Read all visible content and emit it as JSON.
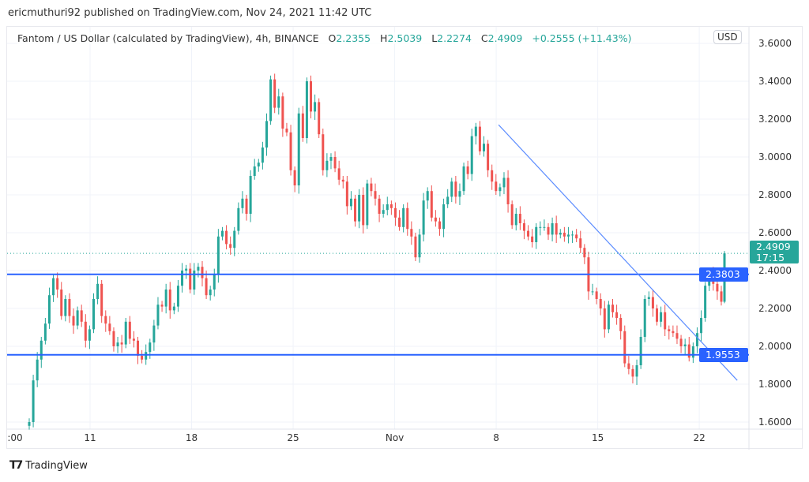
{
  "header": {
    "published": "ericmuthuri92 published on TradingView.com, Nov 24, 2021 11:42 UTC"
  },
  "legend": {
    "symbol": "Fantom / US Dollar (calculated by TradingView), 4h, BINANCE",
    "o_label": "O",
    "o": "2.2355",
    "h_label": "H",
    "h": "2.5039",
    "l_label": "L",
    "l": "2.2274",
    "c_label": "C",
    "c": "2.4909",
    "change": "+0.2555 (+11.43%)"
  },
  "currency_button": "USD",
  "footer": {
    "logo_text": "TradingView",
    "logo_mark": "TV"
  },
  "colors": {
    "up": "#26a69a",
    "down": "#ef5350",
    "lines": "#2962ff",
    "grid": "#f0f3fa"
  },
  "chart_data": {
    "type": "candlestick",
    "title": "Fantom / US Dollar (calculated by TradingView), 4h, BINANCE",
    "interval": "4h",
    "x_range": [
      "Oct 6",
      "Nov 24"
    ],
    "x_ticks": [
      ":00",
      "11",
      "18",
      "25",
      "Nov",
      "8",
      "15",
      "22"
    ],
    "y_ticks": [
      "3.6000",
      "3.4000",
      "3.2000",
      "3.0000",
      "2.8000",
      "2.6000",
      "2.4000",
      "2.2000",
      "2.0000",
      "1.8000",
      "1.6000"
    ],
    "ylim": [
      1.58,
      3.6
    ],
    "grid": true,
    "closes": [
      1.6,
      1.82,
      1.93,
      2.03,
      2.12,
      2.27,
      2.36,
      2.3,
      2.16,
      2.25,
      2.16,
      2.11,
      2.19,
      2.13,
      2.03,
      2.09,
      2.25,
      2.33,
      2.16,
      2.12,
      2.08,
      2.0,
      2.02,
      2.01,
      2.13,
      2.04,
      2.03,
      1.95,
      1.93,
      1.97,
      2.02,
      2.11,
      2.22,
      2.21,
      2.3,
      2.19,
      2.21,
      2.32,
      2.4,
      2.41,
      2.3,
      2.4,
      2.42,
      2.36,
      2.27,
      2.3,
      2.38,
      2.58,
      2.61,
      2.54,
      2.52,
      2.61,
      2.73,
      2.78,
      2.7,
      2.9,
      2.95,
      2.97,
      3.05,
      3.19,
      3.41,
      3.26,
      3.32,
      3.15,
      3.13,
      2.93,
      2.85,
      3.23,
      3.1,
      3.4,
      3.24,
      3.29,
      3.12,
      2.93,
      2.98,
      3.0,
      2.94,
      2.88,
      2.87,
      2.74,
      2.78,
      2.66,
      2.8,
      2.64,
      2.86,
      2.82,
      2.78,
      2.7,
      2.72,
      2.75,
      2.73,
      2.68,
      2.63,
      2.73,
      2.62,
      2.58,
      2.47,
      2.59,
      2.77,
      2.82,
      2.68,
      2.66,
      2.62,
      2.75,
      2.79,
      2.87,
      2.79,
      2.82,
      2.95,
      2.91,
      3.11,
      3.16,
      3.03,
      3.07,
      2.93,
      2.87,
      2.82,
      2.84,
      2.89,
      2.75,
      2.64,
      2.7,
      2.65,
      2.61,
      2.58,
      2.55,
      2.63,
      2.63,
      2.63,
      2.59,
      2.65,
      2.59,
      2.6,
      2.58,
      2.59,
      2.59,
      2.57,
      2.52,
      2.47,
      2.29,
      2.29,
      2.25,
      2.2,
      2.09,
      2.22,
      2.18,
      2.15,
      2.08,
      1.91,
      1.88,
      1.84,
      1.9,
      2.05,
      2.25,
      2.26,
      2.2,
      2.13,
      2.18,
      2.09,
      2.08,
      2.07,
      2.04,
      2.0,
      2.01,
      1.94,
      2.0,
      2.07,
      2.15,
      2.32,
      2.38,
      2.33,
      2.29,
      2.2355
    ],
    "last_candle": {
      "open": 2.2355,
      "high": 2.5039,
      "low": 2.2274,
      "close": 2.4909,
      "countdown": "17:15"
    },
    "levels": [
      {
        "price": 2.3803,
        "label": "2.3803"
      },
      {
        "price": 1.9553,
        "label": "1.9553"
      }
    ],
    "last_price_label": "2.4909",
    "trendline": {
      "from": {
        "date": "Nov 8",
        "price": 3.17
      },
      "to": {
        "date": "Nov 25",
        "price": 1.82
      }
    }
  }
}
